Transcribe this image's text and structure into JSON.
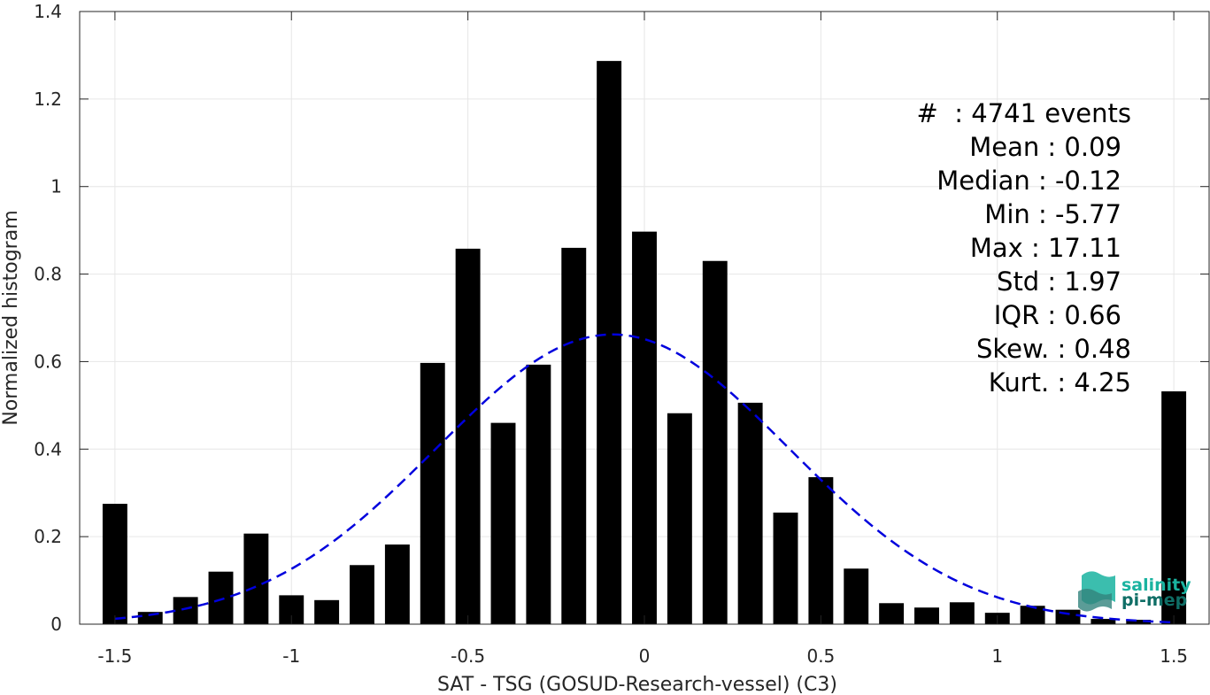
{
  "chart_data": {
    "type": "bar",
    "xlabel": "SAT - TSG (GOSUD-Research-vessel) (C3)",
    "ylabel": "Normalized histogram",
    "xlim": [
      -1.6,
      1.6
    ],
    "ylim": [
      0,
      1.4
    ],
    "xticks": [
      -1.5,
      -1,
      -0.5,
      0,
      0.5,
      1,
      1.5
    ],
    "xtick_labels": [
      "-1.5",
      "-1",
      "-0.5",
      "0",
      "0.5",
      "1",
      "1.5"
    ],
    "yticks": [
      0,
      0.2,
      0.4,
      0.6,
      0.8,
      1,
      1.2,
      1.4
    ],
    "ytick_labels": [
      "0",
      "0.2",
      "0.4",
      "0.6",
      "0.8",
      "1",
      "1.2",
      "1.4"
    ],
    "grid": true,
    "bar_color": "#000000",
    "bin_width": 0.1,
    "x": [
      -1.5,
      -1.4,
      -1.3,
      -1.2,
      -1.1,
      -1.0,
      -0.9,
      -0.8,
      -0.7,
      -0.6,
      -0.5,
      -0.4,
      -0.3,
      -0.2,
      -0.1,
      0.0,
      0.1,
      0.2,
      0.3,
      0.4,
      0.5,
      0.6,
      0.7,
      0.8,
      0.9,
      1.0,
      1.1,
      1.2,
      1.3,
      1.4,
      1.5
    ],
    "values": [
      0.275,
      0.028,
      0.062,
      0.12,
      0.207,
      0.066,
      0.055,
      0.135,
      0.182,
      0.597,
      0.858,
      0.46,
      0.593,
      0.86,
      1.287,
      0.897,
      0.482,
      0.83,
      0.506,
      0.255,
      0.336,
      0.127,
      0.048,
      0.038,
      0.05,
      0.026,
      0.042,
      0.033,
      0.012,
      0.01,
      0.532
    ],
    "fit_curve": {
      "type": "gaussian",
      "color": "#0000dd",
      "style": "dashed",
      "x_range": [
        -1.5,
        1.5
      ],
      "peak_x": -0.09,
      "peak_y": 0.662,
      "sigma": 0.5
    },
    "stats": {
      "count": "#  : 4741 events",
      "mean": "Mean : 0.09",
      "median": "Median : -0.12",
      "min": "Min : -5.77",
      "max": "Max : 17.11",
      "std": "Std : 1.97",
      "iqr": "IQR : 0.66",
      "skew": "Skew. : 0.48",
      "kurt": "Kurt. : 4.25"
    }
  },
  "logo": {
    "line1": "salinity",
    "line2": "pi-mep",
    "color1": "#1ab3a0",
    "color2": "#0f6e66"
  }
}
